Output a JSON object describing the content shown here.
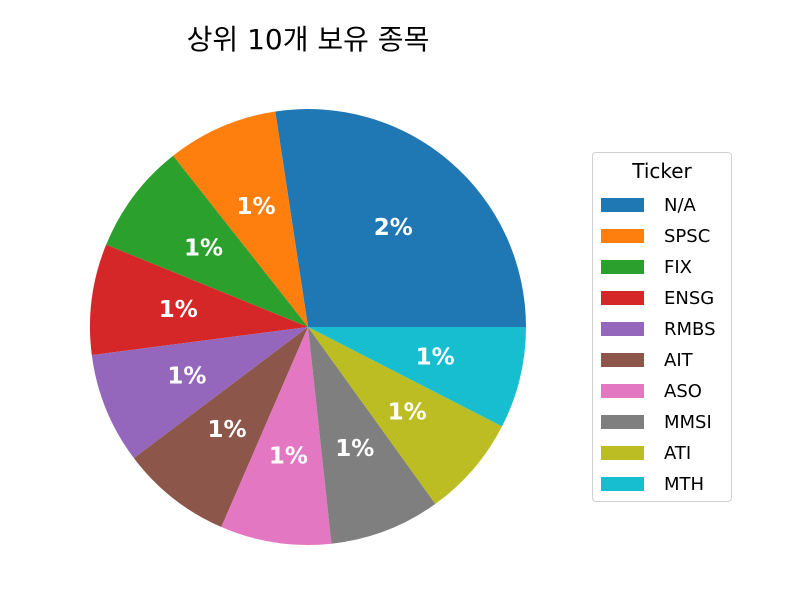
{
  "chart_data": {
    "type": "pie",
    "title": "상위 10개 보유 종목",
    "legend_title": "Ticker",
    "legend_position": "right",
    "start_angle_deg": 0,
    "direction": "counterclockwise",
    "slices": [
      {
        "label": "N/A",
        "value": 2.0,
        "display": "2%",
        "color": "#1f77b4"
      },
      {
        "label": "SPSC",
        "value": 0.6,
        "display": "1%",
        "color": "#ff7f0e"
      },
      {
        "label": "FIX",
        "value": 0.6,
        "display": "1%",
        "color": "#2ca02c"
      },
      {
        "label": "ENSG",
        "value": 0.6,
        "display": "1%",
        "color": "#d62728"
      },
      {
        "label": "RMBS",
        "value": 0.6,
        "display": "1%",
        "color": "#9467bd"
      },
      {
        "label": "AIT",
        "value": 0.6,
        "display": "1%",
        "color": "#8c564b"
      },
      {
        "label": "ASO",
        "value": 0.6,
        "display": "1%",
        "color": "#e377c2"
      },
      {
        "label": "MMSI",
        "value": 0.6,
        "display": "1%",
        "color": "#7f7f7f"
      },
      {
        "label": "ATI",
        "value": 0.55,
        "display": "1%",
        "color": "#bcbd22"
      },
      {
        "label": "MTH",
        "value": 0.55,
        "display": "1%",
        "color": "#17becf"
      }
    ]
  }
}
